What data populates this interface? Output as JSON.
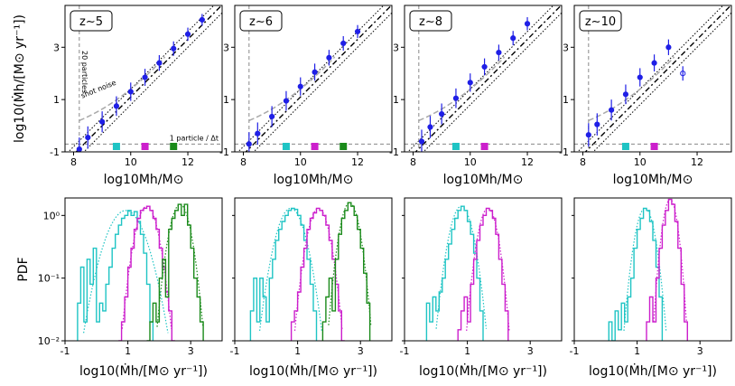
{
  "top_row": {
    "ylabel": "log10(Ṁh/[M⊙ yr⁻¹])",
    "xlabel": "log10Mh/M⊙",
    "xlim": [
      7.7,
      13.2
    ],
    "ylim": [
      -1,
      4.6
    ],
    "xticks": [
      8,
      10,
      12
    ],
    "yticks": [
      -1,
      1,
      3
    ],
    "annotations": {
      "particles_20": "20 particles",
      "shot_noise": "shot noise",
      "one_particle": "1 particle / Δt"
    }
  },
  "bottom_row": {
    "ylabel": "PDF",
    "xlabel": "log10(Ṁh/[M⊙ yr⁻¹])",
    "xlim": [
      -1,
      4
    ],
    "ylog": true,
    "ylim": [
      0.01,
      1.9
    ],
    "xticks": [
      -1,
      1,
      3
    ],
    "yticks": [
      0.01,
      0.1,
      1
    ]
  },
  "colors": {
    "data": "#1f1fe6",
    "cyan": "#1fc4c4",
    "magenta": "#cc1fcc",
    "green": "#1a8a1a",
    "gray": "#888888"
  },
  "chart_data": [
    {
      "type": "scatter",
      "z_label": "z∼5",
      "markers": [
        9.5,
        10.5,
        11.5
      ],
      "x": [
        8.2,
        8.5,
        9.0,
        9.5,
        10.0,
        10.5,
        11.0,
        11.5,
        12.0,
        12.5
      ],
      "y": [
        -0.9,
        -0.45,
        0.15,
        0.75,
        1.3,
        1.85,
        2.4,
        2.95,
        3.5,
        4.05
      ]
    },
    {
      "type": "scatter",
      "z_label": "z∼6",
      "markers": [
        9.5,
        10.5,
        11.5
      ],
      "x": [
        8.2,
        8.5,
        9.0,
        9.5,
        10.0,
        10.5,
        11.0,
        11.5,
        12.0
      ],
      "y": [
        -0.7,
        -0.3,
        0.35,
        0.95,
        1.5,
        2.05,
        2.6,
        3.15,
        3.6
      ]
    },
    {
      "type": "scatter",
      "z_label": "z∼8",
      "markers": [
        9.5,
        10.5
      ],
      "x": [
        8.3,
        8.6,
        9.0,
        9.5,
        10.0,
        10.5,
        11.0,
        11.5,
        12.0
      ],
      "y": [
        -0.6,
        -0.05,
        0.45,
        1.05,
        1.65,
        2.25,
        2.8,
        3.35,
        3.9
      ]
    },
    {
      "type": "scatter",
      "z_label": "z∼10",
      "markers": [
        9.5,
        10.5
      ],
      "x": [
        8.2,
        8.5,
        9.0,
        9.5,
        10.0,
        10.5,
        11.0,
        11.5
      ],
      "y": [
        -0.35,
        0.05,
        0.6,
        1.2,
        1.85,
        2.4,
        3.0,
        2.0
      ]
    },
    {
      "type": "step",
      "series": [
        {
          "name": "",
          "color": "cyan",
          "x0": -0.6,
          "dx": 0.1,
          "values": [
            0.04,
            0.15,
            0.02,
            0.2,
            0.08,
            0.3,
            0.02,
            0.04,
            0.03,
            0.08,
            0.15,
            0.3,
            0.5,
            0.7,
            0.9,
            1.0,
            1.2,
            1.0,
            1.15,
            0.8,
            0.5,
            0.25,
            0.08,
            0.02
          ]
        },
        {
          "name": "",
          "color": "magenta",
          "x0": 0.7,
          "dx": 0.1,
          "values": [
            0.01,
            0.02,
            0.05,
            0.15,
            0.3,
            0.6,
            0.9,
            1.2,
            1.3,
            1.4,
            1.2,
            0.9,
            0.6,
            0.3,
            0.15,
            0.06,
            0.03,
            0.01
          ]
        },
        {
          "name": "",
          "color": "green",
          "x0": 1.6,
          "dx": 0.1,
          "values": [
            0.01,
            0.02,
            0.04,
            0.02,
            0.1,
            0.2,
            0.05,
            0.6,
            0.9,
            1.2,
            1.5,
            1.0,
            1.5,
            0.7,
            0.3,
            0.1,
            0.05,
            0.02
          ]
        }
      ]
    },
    {
      "type": "step",
      "series": [
        {
          "name": "",
          "color": "cyan",
          "x0": -0.5,
          "dx": 0.1,
          "values": [
            0.03,
            0.1,
            0.02,
            0.1,
            0.05,
            0.02,
            0.1,
            0.2,
            0.4,
            0.6,
            0.8,
            1.0,
            1.2,
            1.3,
            1.25,
            1.0,
            0.7,
            0.4,
            0.2,
            0.08,
            0.03
          ]
        },
        {
          "name": "",
          "color": "magenta",
          "x0": 0.8,
          "dx": 0.1,
          "values": [
            0.02,
            0.03,
            0.06,
            0.15,
            0.3,
            0.6,
            0.9,
            1.1,
            1.3,
            1.2,
            1.0,
            0.7,
            0.4,
            0.2,
            0.08,
            0.03,
            0.01
          ]
        },
        {
          "name": "",
          "color": "green",
          "x0": 1.8,
          "dx": 0.1,
          "values": [
            0.02,
            0.05,
            0.1,
            0.03,
            0.2,
            0.5,
            0.9,
            1.2,
            1.6,
            1.4,
            1.0,
            0.6,
            0.3,
            0.12,
            0.04
          ]
        }
      ]
    },
    {
      "type": "step",
      "series": [
        {
          "name": "",
          "color": "cyan",
          "x0": -0.3,
          "dx": 0.1,
          "values": [
            0.04,
            0.02,
            0.05,
            0.03,
            0.06,
            0.1,
            0.2,
            0.35,
            0.6,
            0.9,
            1.2,
            1.4,
            1.2,
            0.8,
            0.5,
            0.25,
            0.1,
            0.03
          ]
        },
        {
          "name": "",
          "color": "magenta",
          "x0": 0.7,
          "dx": 0.1,
          "values": [
            0.015,
            0.03,
            0.05,
            0.02,
            0.08,
            0.2,
            0.4,
            0.7,
            1.0,
            1.3,
            1.2,
            0.9,
            0.5,
            0.2,
            0.08,
            0.03
          ]
        }
      ]
    },
    {
      "type": "step",
      "series": [
        {
          "name": "",
          "color": "cyan",
          "x0": 0.1,
          "dx": 0.1,
          "values": [
            0.02,
            0.01,
            0.03,
            0.015,
            0.04,
            0.02,
            0.05,
            0.1,
            0.3,
            0.6,
            0.9,
            1.3,
            1.2,
            0.8,
            0.4,
            0.15,
            0.05
          ]
        },
        {
          "name": "",
          "color": "magenta",
          "x0": 1.3,
          "dx": 0.1,
          "values": [
            0.02,
            0.05,
            0.02,
            0.1,
            0.3,
            0.7,
            1.2,
            1.8,
            1.5,
            0.8,
            0.3,
            0.08,
            0.02
          ]
        }
      ]
    }
  ]
}
